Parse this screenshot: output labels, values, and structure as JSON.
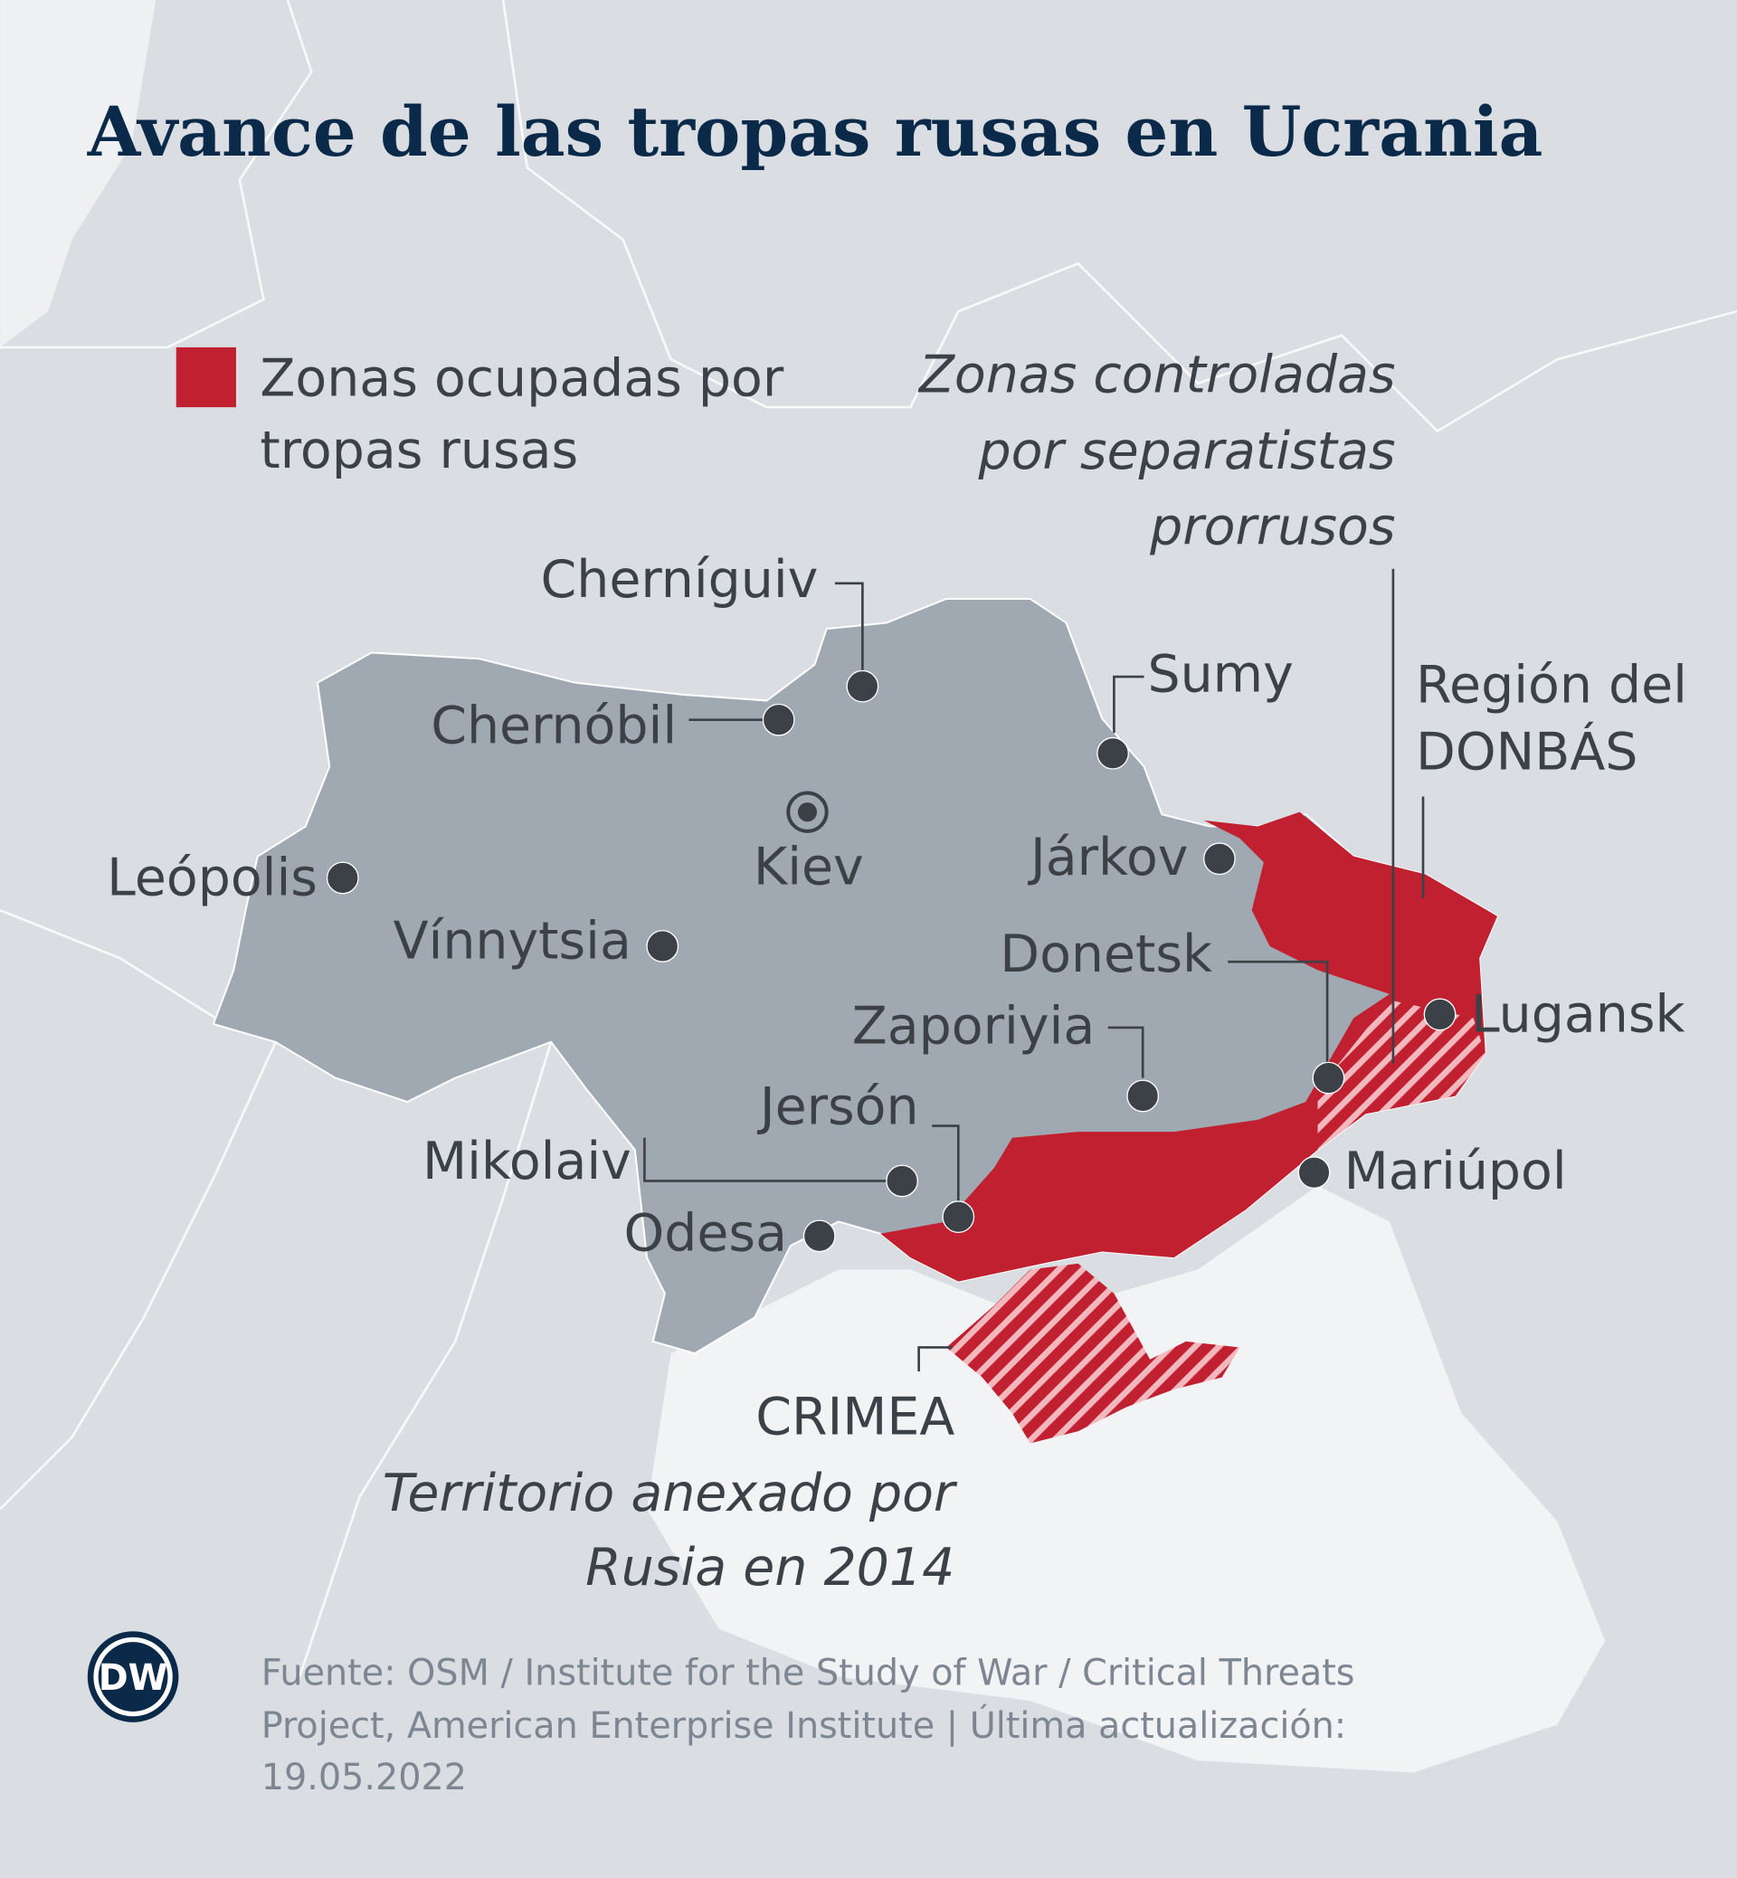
{
  "title": "Avance de las tropas rusas en Ucrania",
  "legend": {
    "label": [
      "Zonas ocupadas por",
      "tropas rusas"
    ]
  },
  "annotations": {
    "separatists": [
      "Zonas controladas",
      "por separatistas",
      "prorrusos"
    ],
    "donbas": [
      "Región del",
      "DONBÁS"
    ],
    "crimea": {
      "name": "CRIMEA",
      "note": [
        "Territorio anexado por",
        "Rusia en 2014"
      ]
    }
  },
  "capital": "Kiev",
  "cities": [
    "Cherníguiv",
    "Chernóbil",
    "Leópolis",
    "Vínnytsia",
    "Sumy",
    "Járkov",
    "Donetsk",
    "Zaporiyia",
    "Jersón",
    "Mikolaiv",
    "Odesa",
    "Lugansk",
    "Mariúpol"
  ],
  "source": [
    "Fuente: OSM / Institute for the Study of War / Critical Threats",
    "Project, American Enterprise Institute | Última actualización:",
    "19.05.2022"
  ],
  "logo": "DW"
}
